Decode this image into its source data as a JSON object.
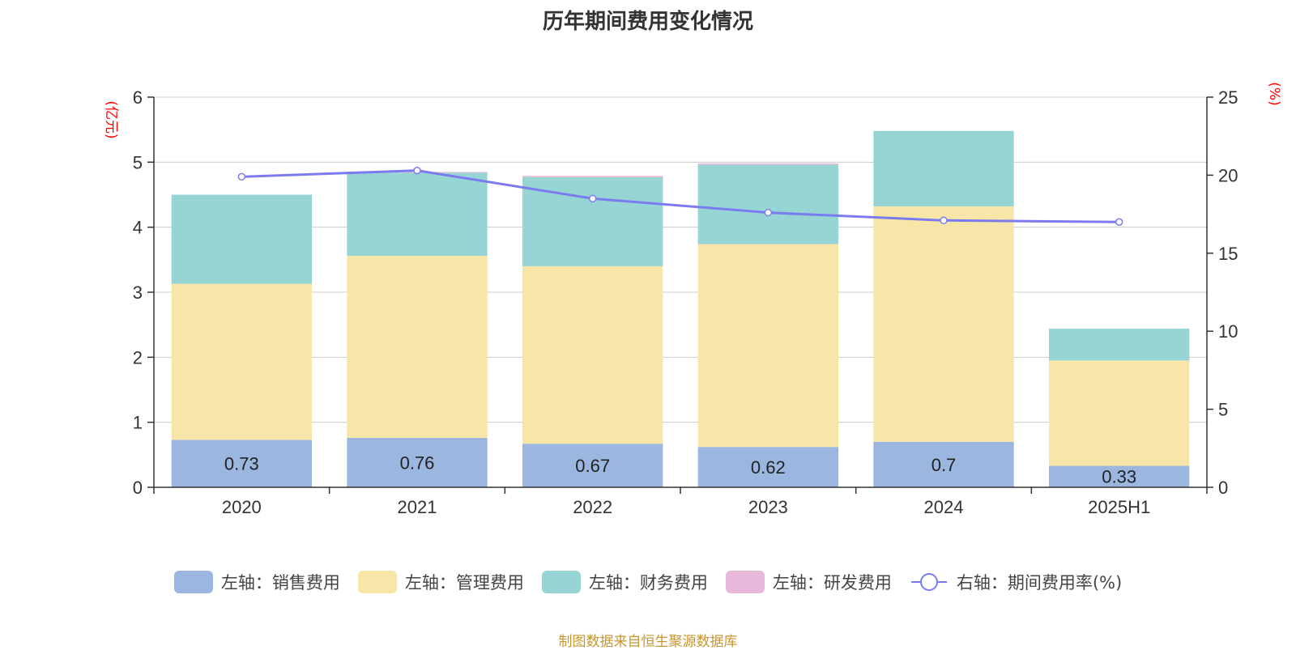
{
  "source_note": "制图数据来自恒生聚源数据库",
  "chart_data": {
    "type": "bar",
    "stacked": true,
    "title": "历年期间费用变化情况",
    "categories": [
      "2020",
      "2021",
      "2022",
      "2023",
      "2024",
      "2025H1"
    ],
    "y_left": {
      "unit_label": "(亿元)",
      "range": [
        0,
        6
      ],
      "ticks": [
        "0",
        "1",
        "2",
        "3",
        "4",
        "5",
        "6"
      ]
    },
    "y_right": {
      "unit_label": "(%)",
      "range": [
        0,
        25
      ],
      "ticks": [
        "0",
        "5",
        "10",
        "15",
        "20",
        "25"
      ]
    },
    "grid": true,
    "legend_position": "bottom",
    "series": [
      {
        "name": "左轴：销售费用",
        "axis": "left",
        "type": "bar",
        "color": "#9bb7e0",
        "values": [
          0.73,
          0.76,
          0.67,
          0.62,
          0.7,
          0.33
        ],
        "data_labels": [
          "0.73",
          "0.76",
          "0.67",
          "0.62",
          "0.7",
          "0.33"
        ]
      },
      {
        "name": "左轴：管理费用",
        "axis": "left",
        "type": "bar",
        "color": "#f7e6a8",
        "values": [
          2.4,
          2.8,
          2.73,
          3.12,
          3.62,
          1.62
        ]
      },
      {
        "name": "左轴：财务费用",
        "axis": "left",
        "type": "bar",
        "color": "#97d4d4",
        "values": [
          1.37,
          1.28,
          1.37,
          1.22,
          1.16,
          0.49
        ]
      },
      {
        "name": "左轴：研发费用",
        "axis": "left",
        "type": "bar",
        "color": "#e8b8da",
        "values": [
          0.0,
          0.01,
          0.02,
          0.02,
          0.0,
          0.0
        ]
      },
      {
        "name": "右轴：期间费用率(%)",
        "axis": "right",
        "type": "line",
        "color": "#7b7bef",
        "values": [
          19.9,
          20.3,
          18.5,
          17.6,
          17.1,
          17.0
        ]
      }
    ]
  }
}
